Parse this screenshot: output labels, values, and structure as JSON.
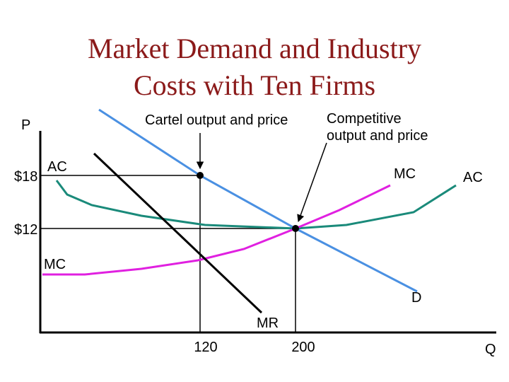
{
  "header": {
    "title_lines": [
      "Market Demand and Industry",
      "Costs with Ten Firms"
    ]
  },
  "axes": {
    "y_label": "P",
    "x_label": "Q",
    "y_ticks": [
      "$18",
      "$12"
    ],
    "x_ticks": [
      "120",
      "200"
    ]
  },
  "curves": {
    "ac_left": "AC",
    "ac_right": "AC",
    "mc_left": "MC",
    "mc_right": "MC",
    "demand": "D",
    "mr": "MR"
  },
  "annotations": {
    "cartel": "Cartel output and price",
    "competitive_lines": [
      "Competitive",
      "output and price"
    ]
  }
}
